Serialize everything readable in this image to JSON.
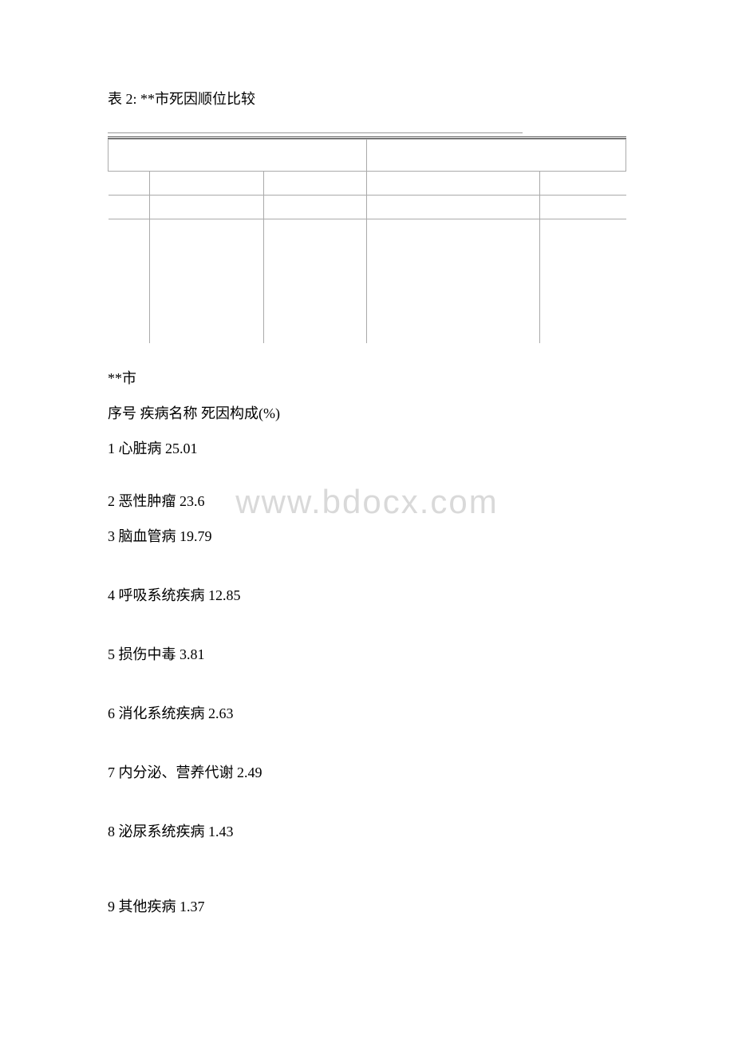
{
  "title": "表 2: **市死因顺位比较",
  "watermark": "www.bdocx.com",
  "city_label": "**市",
  "header_line": "序号 疾病名称 死因构成(%)",
  "rows": [
    {
      "text": "1 心脏病 25.01",
      "spacing": "gap1"
    },
    {
      "text": "2 恶性肿瘤 23.6",
      "spacing": ""
    },
    {
      "text": "3 脑血管病 19.79",
      "spacing": "gap2"
    },
    {
      "text": "4 呼吸系统疾病 12.85",
      "spacing": "gap2"
    },
    {
      "text": "5 损伤中毒 3.81",
      "spacing": "gap2"
    },
    {
      "text": "6 消化系统疾病 2.63",
      "spacing": "gap2"
    },
    {
      "text": "7 内分泌、营养代谢 2.49",
      "spacing": "gap2"
    },
    {
      "text": "8 泌尿系统疾病 1.43",
      "spacing": "gap3"
    },
    {
      "text": "9 其他疾病 1.37",
      "spacing": ""
    }
  ],
  "colors": {
    "text": "#000000",
    "watermark": "#d9d9d9",
    "border": "#aaaaaa",
    "background": "#ffffff"
  }
}
